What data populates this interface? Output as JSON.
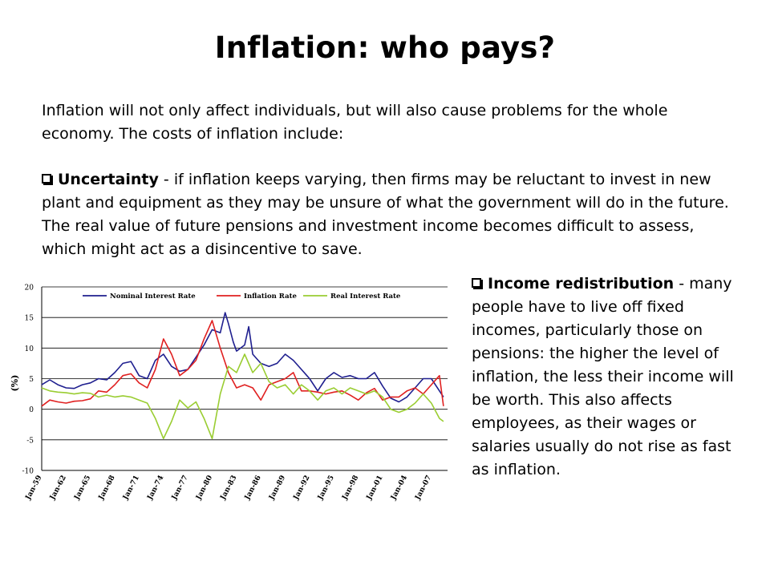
{
  "slide": {
    "title": "Inflation: who pays?",
    "intro": "Inflation will not only affect individuals, but will also cause problems for the whole economy. The costs of inflation include:"
  },
  "bullets": [
    {
      "icon": "checkbox-bullet-icon",
      "heading": "Uncertainty",
      "text": " - if inflation keeps varying, then firms may be reluctant to invest in new plant and equipment as they may be unsure of what the government will do in the future. The real value of future pensions and investment income becomes difficult to assess, which might act as a disincentive to save."
    },
    {
      "icon": "checkbox-bullet-icon",
      "heading": "Income redistribution",
      "text": " - many people have to live off fixed incomes, particularly those on pensions: the higher the level of inflation, the less their income will be worth. This also affects employees, as their wages or salaries usually do not rise as fast as inflation."
    }
  ],
  "chart_data": {
    "type": "line",
    "title": "",
    "xlabel": "",
    "ylabel": "(%)",
    "ylim": [
      -10,
      20
    ],
    "yticks": [
      20,
      15,
      10,
      5,
      0,
      -5,
      -10
    ],
    "xlim": [
      1959,
      2009
    ],
    "xticks": [
      {
        "label": "Jan-59",
        "x": 1959
      },
      {
        "label": "Jan-62",
        "x": 1962
      },
      {
        "label": "Jan-65",
        "x": 1965
      },
      {
        "label": "Jan-68",
        "x": 1968
      },
      {
        "label": "Jan-71",
        "x": 1971
      },
      {
        "label": "Jan-74",
        "x": 1974
      },
      {
        "label": "Jan-77",
        "x": 1977
      },
      {
        "label": "Jan-80",
        "x": 1980
      },
      {
        "label": "Jan-83",
        "x": 1983
      },
      {
        "label": "Jan-86",
        "x": 1986
      },
      {
        "label": "Jan-89",
        "x": 1989
      },
      {
        "label": "Jan-92",
        "x": 1992
      },
      {
        "label": "Jan-95",
        "x": 1995
      },
      {
        "label": "Jan-98",
        "x": 1998
      },
      {
        "label": "Jan-01",
        "x": 2001
      },
      {
        "label": "Jan-04",
        "x": 2004
      },
      {
        "label": "Jan-07",
        "x": 2007
      }
    ],
    "grid": "horizontal",
    "legend_position": "top",
    "series": [
      {
        "name": "Nominal Interest Rate",
        "color": "#1f1f8f",
        "points": [
          [
            1959,
            4.0
          ],
          [
            1960,
            4.8
          ],
          [
            1961,
            4.0
          ],
          [
            1962,
            3.5
          ],
          [
            1963,
            3.4
          ],
          [
            1964,
            4.0
          ],
          [
            1965,
            4.3
          ],
          [
            1966,
            5.0
          ],
          [
            1967,
            4.8
          ],
          [
            1968,
            6.0
          ],
          [
            1969,
            7.5
          ],
          [
            1970,
            7.8
          ],
          [
            1971,
            5.5
          ],
          [
            1972,
            5.0
          ],
          [
            1973,
            8.0
          ],
          [
            1974,
            9.0
          ],
          [
            1975,
            7.0
          ],
          [
            1976,
            6.2
          ],
          [
            1977,
            6.5
          ],
          [
            1978,
            8.5
          ],
          [
            1979,
            10.5
          ],
          [
            1980,
            13.0
          ],
          [
            1981,
            12.5
          ],
          [
            1981.6,
            15.8
          ],
          [
            1982,
            14.0
          ],
          [
            1982.6,
            11.0
          ],
          [
            1983,
            9.5
          ],
          [
            1984,
            10.5
          ],
          [
            1984.5,
            13.5
          ],
          [
            1985,
            9.0
          ],
          [
            1986,
            7.5
          ],
          [
            1987,
            7.0
          ],
          [
            1988,
            7.5
          ],
          [
            1989,
            9.0
          ],
          [
            1990,
            8.0
          ],
          [
            1991,
            6.5
          ],
          [
            1992,
            5.0
          ],
          [
            1993,
            3.0
          ],
          [
            1994,
            5.0
          ],
          [
            1995,
            6.0
          ],
          [
            1996,
            5.2
          ],
          [
            1997,
            5.5
          ],
          [
            1998,
            5.0
          ],
          [
            1999,
            5.0
          ],
          [
            2000,
            6.0
          ],
          [
            2001,
            3.8
          ],
          [
            2002,
            1.8
          ],
          [
            2003,
            1.2
          ],
          [
            2004,
            2.0
          ],
          [
            2005,
            3.5
          ],
          [
            2006,
            5.0
          ],
          [
            2007,
            5.0
          ],
          [
            2008,
            3.0
          ],
          [
            2008.5,
            2.0
          ]
        ]
      },
      {
        "name": "Inflation Rate",
        "color": "#e02020",
        "points": [
          [
            1959,
            0.5
          ],
          [
            1960,
            1.5
          ],
          [
            1961,
            1.2
          ],
          [
            1962,
            1.0
          ],
          [
            1963,
            1.3
          ],
          [
            1964,
            1.4
          ],
          [
            1965,
            1.7
          ],
          [
            1966,
            3.0
          ],
          [
            1967,
            2.8
          ],
          [
            1968,
            4.0
          ],
          [
            1969,
            5.5
          ],
          [
            1970,
            5.8
          ],
          [
            1971,
            4.3
          ],
          [
            1972,
            3.5
          ],
          [
            1973,
            6.5
          ],
          [
            1974,
            11.5
          ],
          [
            1975,
            9.0
          ],
          [
            1976,
            5.5
          ],
          [
            1977,
            6.5
          ],
          [
            1978,
            8.0
          ],
          [
            1979,
            11.5
          ],
          [
            1980,
            14.5
          ],
          [
            1981,
            10.0
          ],
          [
            1982,
            6.0
          ],
          [
            1983,
            3.5
          ],
          [
            1984,
            4.0
          ],
          [
            1985,
            3.5
          ],
          [
            1986,
            1.5
          ],
          [
            1987,
            4.0
          ],
          [
            1988,
            4.5
          ],
          [
            1989,
            5.0
          ],
          [
            1990,
            6.0
          ],
          [
            1991,
            3.0
          ],
          [
            1992,
            3.0
          ],
          [
            1993,
            2.8
          ],
          [
            1994,
            2.5
          ],
          [
            1995,
            2.8
          ],
          [
            1996,
            3.0
          ],
          [
            1997,
            2.3
          ],
          [
            1998,
            1.5
          ],
          [
            1999,
            2.7
          ],
          [
            2000,
            3.4
          ],
          [
            2001,
            1.5
          ],
          [
            2002,
            2.0
          ],
          [
            2003,
            2.0
          ],
          [
            2004,
            3.0
          ],
          [
            2005,
            3.5
          ],
          [
            2006,
            2.5
          ],
          [
            2007,
            4.0
          ],
          [
            2008,
            5.5
          ],
          [
            2008.5,
            0.5
          ]
        ]
      },
      {
        "name": "Real Interest Rate",
        "color": "#9acd32",
        "points": [
          [
            1959,
            3.5
          ],
          [
            1960,
            3.0
          ],
          [
            1961,
            2.8
          ],
          [
            1962,
            2.7
          ],
          [
            1963,
            2.5
          ],
          [
            1964,
            2.7
          ],
          [
            1965,
            2.6
          ],
          [
            1966,
            2.0
          ],
          [
            1967,
            2.3
          ],
          [
            1968,
            2.0
          ],
          [
            1969,
            2.2
          ],
          [
            1970,
            2.0
          ],
          [
            1971,
            1.5
          ],
          [
            1972,
            1.0
          ],
          [
            1973,
            -1.5
          ],
          [
            1974,
            -4.8
          ],
          [
            1975,
            -2.0
          ],
          [
            1976,
            1.5
          ],
          [
            1977,
            0.2
          ],
          [
            1978,
            1.2
          ],
          [
            1979,
            -1.5
          ],
          [
            1980,
            -4.8
          ],
          [
            1981,
            2.5
          ],
          [
            1982,
            7.0
          ],
          [
            1983,
            6.0
          ],
          [
            1984,
            9.0
          ],
          [
            1985,
            6.0
          ],
          [
            1986,
            7.5
          ],
          [
            1987,
            4.5
          ],
          [
            1988,
            3.5
          ],
          [
            1989,
            4.0
          ],
          [
            1990,
            2.5
          ],
          [
            1991,
            4.0
          ],
          [
            1992,
            3.0
          ],
          [
            1993,
            1.5
          ],
          [
            1994,
            3.0
          ],
          [
            1995,
            3.5
          ],
          [
            1996,
            2.5
          ],
          [
            1997,
            3.5
          ],
          [
            1998,
            3.0
          ],
          [
            1999,
            2.5
          ],
          [
            2000,
            3.0
          ],
          [
            2001,
            2.0
          ],
          [
            2002,
            0.0
          ],
          [
            2003,
            -0.5
          ],
          [
            2004,
            0.0
          ],
          [
            2005,
            1.0
          ],
          [
            2006,
            2.5
          ],
          [
            2007,
            1.0
          ],
          [
            2008,
            -1.5
          ],
          [
            2008.5,
            -2.0
          ]
        ]
      }
    ]
  }
}
